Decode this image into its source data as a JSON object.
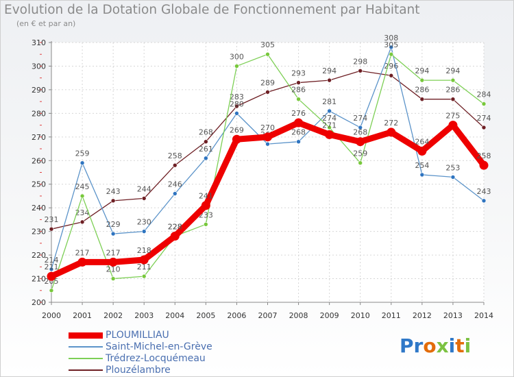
{
  "header": {
    "title": "Evolution de la Dotation Globale de Fonctionnement par Habitant",
    "subtitle": "(en € et par an)"
  },
  "logo": {
    "text": "Proxiti",
    "colors": [
      "#2f78c8",
      "#2f78c8",
      "#e36c0a",
      "#7cc242",
      "#2f78c8",
      "#e36c0a",
      "#7cc242"
    ]
  },
  "chart_data": {
    "type": "line",
    "title": "Evolution de la Dotation Globale de Fonctionnement par Habitant",
    "subtitle": "(en € et par an)",
    "xlabel": "",
    "ylabel": "",
    "x": [
      2000,
      2001,
      2002,
      2003,
      2004,
      2005,
      2006,
      2007,
      2008,
      2009,
      2010,
      2011,
      2012,
      2013,
      2014
    ],
    "ylim": [
      200,
      310
    ],
    "yticks": [
      200,
      210,
      220,
      230,
      240,
      250,
      260,
      270,
      280,
      290,
      300,
      310
    ],
    "grid": true,
    "legend": "bottom-left",
    "series": [
      {
        "name": "Plouzélambre",
        "color": "#6e1f24",
        "marker": "#6e1f24",
        "values": [
          231,
          234,
          243,
          244,
          258,
          268,
          283,
          289,
          293,
          294,
          298,
          296,
          286,
          286,
          274
        ]
      },
      {
        "name": "Saint-Michel-en-Grève",
        "color": "#5b93c9",
        "marker": "#2e74c0",
        "values": [
          214,
          259,
          229,
          230,
          246,
          261,
          280,
          267,
          268,
          281,
          274,
          308,
          254,
          253,
          243
        ]
      },
      {
        "name": "Trédrez-Locquémeau",
        "color": "#7dcf55",
        "marker": "#78c83c",
        "values": [
          205,
          245,
          210,
          211,
          228,
          233,
          300,
          305,
          286,
          274,
          259,
          305,
          294,
          294,
          284
        ]
      },
      {
        "name": "PLOUMILLIAU",
        "color": "#ee0000",
        "marker": "#ee0000",
        "values": [
          211,
          217,
          217,
          218,
          228,
          241,
          269,
          270,
          276,
          271,
          268,
          272,
          264,
          275,
          258
        ]
      }
    ]
  },
  "legend_items": [
    {
      "label": "PLOUMILLIAU",
      "color": "#ee0000",
      "width": 9
    },
    {
      "label": "Saint-Michel-en-Grève",
      "color": "#5b93c9",
      "width": 2
    },
    {
      "label": "Trédrez-Locquémeau",
      "color": "#7dcf55",
      "width": 2
    },
    {
      "label": "Plouzélambre",
      "color": "#6e1f24",
      "width": 2
    }
  ]
}
